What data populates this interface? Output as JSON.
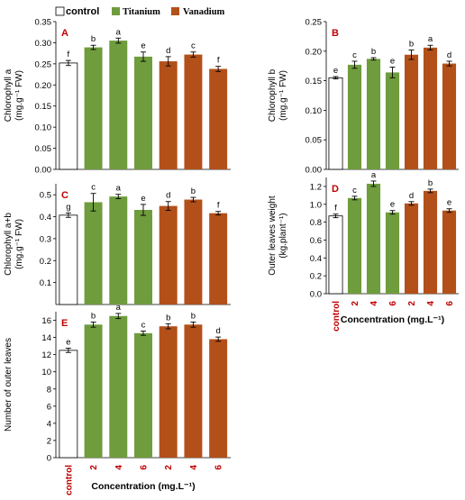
{
  "legend": [
    {
      "label": "control",
      "color": "#ffffff"
    },
    {
      "label": "Titanium",
      "color": "#6f9c3d"
    },
    {
      "label": "Vanadium",
      "color": "#b3501a"
    }
  ],
  "colors": {
    "control": "#ffffff",
    "titanium": "#6f9c3d",
    "vanadium": "#b3501a",
    "label_red": "#c00000"
  },
  "categories": [
    "control",
    "2",
    "4",
    "6",
    "2",
    "4",
    "6"
  ],
  "xlabel": "Concentration (mg.L⁻¹)",
  "chart_data": [
    {
      "type": "bar",
      "panel": "A",
      "ylabel_lines": [
        "Chlorophyll a",
        "(mg.g⁻¹ FW)"
      ],
      "ylim": [
        0.0,
        0.35
      ],
      "yticks": [
        "0.00",
        "0.05",
        "0.10",
        "0.15",
        "0.20",
        "0.25",
        "0.30",
        "0.35"
      ],
      "values": [
        0.252,
        0.289,
        0.305,
        0.267,
        0.256,
        0.272,
        0.238
      ],
      "errors": [
        0.006,
        0.005,
        0.006,
        0.011,
        0.011,
        0.006,
        0.006
      ],
      "letters": [
        "f",
        "b",
        "a",
        "e",
        "d",
        "c",
        "f"
      ],
      "show_x_labels": false
    },
    {
      "type": "bar",
      "panel": "B",
      "ylabel_lines": [
        "Chlorophyll b",
        "(mg.g⁻¹ FW)"
      ],
      "ylim": [
        0.0,
        0.25
      ],
      "yticks": [
        "0.00",
        "0.05",
        "0.10",
        "0.15",
        "0.20",
        "0.25"
      ],
      "values": [
        0.155,
        0.177,
        0.187,
        0.164,
        0.194,
        0.206,
        0.179
      ],
      "errors": [
        0.002,
        0.006,
        0.002,
        0.009,
        0.008,
        0.004,
        0.004
      ],
      "letters": [
        "e",
        "c",
        "b",
        "e",
        "b",
        "a",
        "d"
      ],
      "show_x_labels": false
    },
    {
      "type": "bar",
      "panel": "C",
      "ylabel_lines": [
        "Chlorophyll a+b",
        "(mg.g⁻¹ FW)"
      ],
      "ylim": [
        0.0,
        0.55
      ],
      "yticks": [
        "0.1",
        "0.2",
        "0.3",
        "0.4",
        "0.5"
      ],
      "ytick_values": [
        0.1,
        0.2,
        0.3,
        0.4,
        0.5
      ],
      "values": [
        0.407,
        0.466,
        0.492,
        0.431,
        0.449,
        0.478,
        0.416
      ],
      "errors": [
        0.01,
        0.04,
        0.01,
        0.025,
        0.02,
        0.01,
        0.008
      ],
      "letters": [
        "g",
        "c",
        "a",
        "e",
        "d",
        "b",
        "f"
      ],
      "show_x_labels": false
    },
    {
      "type": "bar",
      "panel": "D",
      "ylabel_lines": [
        "Outer leaves weight",
        "(kg.plant⁻¹)"
      ],
      "ylim": [
        0.0,
        1.3
      ],
      "yticks": [
        "0.0",
        "0.2",
        "0.4",
        "0.6",
        "0.8",
        "1.0",
        "1.2"
      ],
      "ytick_values": [
        0.0,
        0.2,
        0.4,
        0.6,
        0.8,
        1.0,
        1.2
      ],
      "values": [
        0.87,
        1.07,
        1.23,
        0.91,
        1.01,
        1.15,
        0.93
      ],
      "errors": [
        0.02,
        0.02,
        0.03,
        0.02,
        0.02,
        0.02,
        0.02
      ],
      "letters": [
        "f",
        "c",
        "a",
        "e",
        "d",
        "b",
        "e"
      ],
      "show_x_labels": true
    },
    {
      "type": "bar",
      "panel": "E",
      "ylabel_lines": [
        "Number of outer leaves"
      ],
      "ylim": [
        0,
        17
      ],
      "yticks": [
        "0",
        "2",
        "4",
        "6",
        "8",
        "10",
        "12",
        "14",
        "16"
      ],
      "values": [
        12.5,
        15.5,
        16.5,
        14.5,
        15.3,
        15.5,
        13.8
      ],
      "errors": [
        0.25,
        0.3,
        0.3,
        0.25,
        0.3,
        0.3,
        0.25
      ],
      "letters": [
        "e",
        "b",
        "a",
        "c",
        "b",
        "b",
        "d"
      ],
      "show_x_labels": true
    }
  ]
}
